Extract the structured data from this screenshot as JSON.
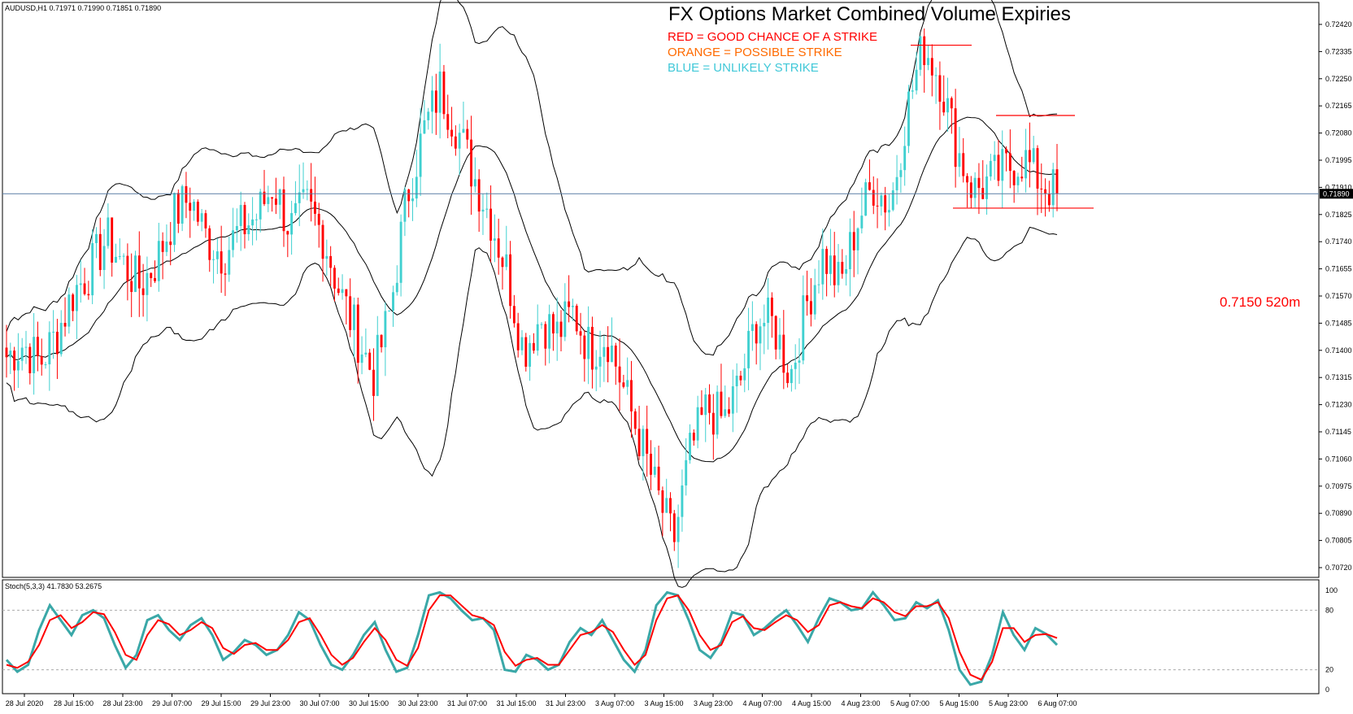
{
  "header": {
    "symbol_info": "AUDUSD,H1  0.71971 0.71990 0.71851 0.71890",
    "title": "FX Options Market Combined Volume Expiries"
  },
  "legend": {
    "red": "RED = GOOD CHANCE OF A STRIKE",
    "orange": "ORANGE = POSSIBLE STRIKE",
    "blue": "BLUE = UNLIKELY STRIKE"
  },
  "annotations": {
    "strike_label": "0.7150 520m"
  },
  "colors": {
    "bull": "#40d0d0",
    "bear": "#ff0000",
    "bands": "#000000",
    "current_line": "#5b7fa6",
    "stoch_main": "#3aa8a8",
    "stoch_signal": "#ff0000",
    "legend_red": "#ff0000",
    "legend_orange": "#ff6a00",
    "legend_blue": "#40c8d8"
  },
  "chart_data": {
    "type": "candlestick",
    "price_axis_ticks": [
      "0.72420",
      "0.72335",
      "0.72250",
      "0.72165",
      "0.72080",
      "0.71995",
      "0.71910",
      "0.71825",
      "0.71740",
      "0.71655",
      "0.71570",
      "0.71485",
      "0.71400",
      "0.71315",
      "0.71230",
      "0.71145",
      "0.71060",
      "0.70975",
      "0.70890",
      "0.70805",
      "0.70720"
    ],
    "ylim": [
      0.7072,
      0.7242
    ],
    "current_price": "0.71890",
    "time_labels": [
      "28 Jul 2020",
      "28 Jul 15:00",
      "28 Jul 23:00",
      "29 Jul 07:00",
      "29 Jul 15:00",
      "29 Jul 23:00",
      "30 Jul 07:00",
      "30 Jul 15:00",
      "30 Jul 23:00",
      "31 Jul 07:00",
      "31 Jul 15:00",
      "31 Jul 23:00",
      "3 Aug 07:00",
      "3 Aug 15:00",
      "3 Aug 23:00",
      "4 Aug 07:00",
      "4 Aug 15:00",
      "4 Aug 23:00",
      "5 Aug 07:00",
      "5 Aug 15:00",
      "5 Aug 23:00",
      "6 Aug 07:00"
    ],
    "close_path": [
      0.7138,
      0.7142,
      0.7136,
      0.7145,
      0.7158,
      0.7165,
      0.7175,
      0.7167,
      0.716,
      0.7168,
      0.7182,
      0.7188,
      0.7175,
      0.717,
      0.7178,
      0.7182,
      0.7192,
      0.7178,
      0.7185,
      0.7176,
      0.7158,
      0.7145,
      0.7132,
      0.7152,
      0.7188,
      0.7208,
      0.7222,
      0.721,
      0.7195,
      0.7182,
      0.7165,
      0.714,
      0.715,
      0.7145,
      0.7152,
      0.714,
      0.7145,
      0.7128,
      0.7112,
      0.7095,
      0.708,
      0.7108,
      0.7122,
      0.7118,
      0.713,
      0.715,
      0.7148,
      0.7132,
      0.7155,
      0.717,
      0.716,
      0.718,
      0.7192,
      0.7185,
      0.7215,
      0.7236,
      0.7225,
      0.7203,
      0.719,
      0.7193,
      0.7197,
      0.72,
      0.7193,
      0.7189
    ],
    "stochastic": {
      "label": "Stoch(5,3,3) 41.7830 53.2675",
      "levels": [
        "100",
        "80",
        "20",
        "0"
      ],
      "main": [
        30,
        18,
        25,
        60,
        85,
        70,
        55,
        75,
        80,
        72,
        45,
        22,
        35,
        70,
        75,
        60,
        50,
        65,
        72,
        55,
        30,
        38,
        50,
        45,
        35,
        40,
        55,
        78,
        70,
        45,
        25,
        20,
        35,
        55,
        68,
        40,
        18,
        22,
        55,
        95,
        98,
        92,
        80,
        70,
        72,
        60,
        20,
        18,
        35,
        30,
        20,
        25,
        48,
        62,
        55,
        70,
        50,
        30,
        18,
        40,
        85,
        98,
        95,
        70,
        40,
        32,
        48,
        78,
        75,
        55,
        62,
        72,
        80,
        65,
        48,
        72,
        92,
        88,
        80,
        82,
        98,
        85,
        70,
        72,
        88,
        82,
        90,
        60,
        20,
        5,
        8,
        35,
        78,
        55,
        40,
        62,
        56,
        45
      ],
      "signal": [
        25,
        22,
        28,
        45,
        70,
        75,
        62,
        68,
        78,
        76,
        58,
        35,
        30,
        55,
        70,
        66,
        55,
        60,
        68,
        62,
        42,
        36,
        45,
        47,
        40,
        40,
        50,
        68,
        72,
        55,
        35,
        25,
        32,
        48,
        62,
        50,
        30,
        24,
        42,
        80,
        95,
        95,
        85,
        75,
        72,
        65,
        38,
        24,
        30,
        32,
        25,
        25,
        40,
        55,
        58,
        65,
        58,
        40,
        25,
        35,
        70,
        92,
        95,
        80,
        55,
        40,
        45,
        68,
        74,
        62,
        60,
        68,
        75,
        70,
        58,
        65,
        85,
        88,
        84,
        82,
        92,
        88,
        78,
        74,
        84,
        84,
        88,
        72,
        38,
        15,
        10,
        28,
        62,
        62,
        48,
        55,
        56,
        52
      ]
    }
  }
}
